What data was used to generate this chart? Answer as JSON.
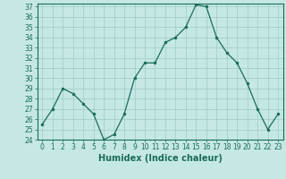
{
  "x": [
    0,
    1,
    2,
    3,
    4,
    5,
    6,
    7,
    8,
    9,
    10,
    11,
    12,
    13,
    14,
    15,
    16,
    17,
    18,
    19,
    20,
    21,
    22,
    23
  ],
  "y": [
    25.5,
    27.0,
    29.0,
    28.5,
    27.5,
    26.5,
    24.0,
    24.5,
    26.5,
    30.0,
    31.5,
    31.5,
    33.5,
    34.0,
    35.0,
    37.2,
    37.0,
    34.0,
    32.5,
    31.5,
    29.5,
    27.0,
    25.0,
    26.5
  ],
  "xlabel": "Humidex (Indice chaleur)",
  "ylim": [
    24,
    37
  ],
  "xlim": [
    -0.5,
    23.5
  ],
  "yticks": [
    24,
    25,
    26,
    27,
    28,
    29,
    30,
    31,
    32,
    33,
    34,
    35,
    36,
    37
  ],
  "xticks": [
    0,
    1,
    2,
    3,
    4,
    5,
    6,
    7,
    8,
    9,
    10,
    11,
    12,
    13,
    14,
    15,
    16,
    17,
    18,
    19,
    20,
    21,
    22,
    23
  ],
  "line_color": "#1a6b5a",
  "marker_color": "#1a6b5a",
  "bg_color": "#c5e8e5",
  "grid_color": "#9dcbc8",
  "font_color": "#1a6b5a",
  "tick_fontsize": 5.5,
  "xlabel_fontsize": 7.0
}
